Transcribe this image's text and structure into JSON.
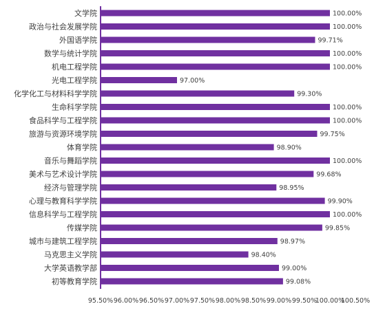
{
  "chart_data": {
    "type": "bar",
    "orientation": "horizontal",
    "title": "",
    "xlabel": "",
    "ylabel": "",
    "categories": [
      "文学院",
      "政治与社会发展学院",
      "外国语学院",
      "数学与统计学院",
      "机电工程学院",
      "光电工程学院",
      "化学化工与材料科学学院",
      "生命科学学院",
      "食品科学与工程学院",
      "旅游与资源环境学院",
      "体育学院",
      "音乐与舞蹈学院",
      "美术与艺术设计学院",
      "经济与管理学院",
      "心理与教育科学学院",
      "信息科学与工程学院",
      "传媒学院",
      "城市与建筑工程学院",
      "马克思主义学院",
      "大学英语教学部",
      "初等教育学院"
    ],
    "values": [
      100.0,
      100.0,
      99.71,
      100.0,
      100.0,
      97.0,
      99.3,
      100.0,
      100.0,
      99.75,
      98.9,
      100.0,
      99.68,
      98.95,
      99.9,
      100.0,
      99.85,
      98.97,
      98.4,
      99.0,
      99.08
    ],
    "value_labels": [
      "100.00%",
      "100.00%",
      "99.71%",
      "100.00%",
      "100.00%",
      "97.00%",
      "99.30%",
      "100.00%",
      "100.00%",
      "99.75%",
      "98.90%",
      "100.00%",
      "99.68%",
      "98.95%",
      "99.90%",
      "100.00%",
      "99.85%",
      "98.97%",
      "98.40%",
      "99.00%",
      "99.08%"
    ],
    "xlim": [
      95.5,
      100.5
    ],
    "x_ticks": [
      95.5,
      96.0,
      96.5,
      97.0,
      97.5,
      98.0,
      98.5,
      99.0,
      99.5,
      100.0,
      100.5
    ],
    "x_tick_labels": [
      "95.50%",
      "96.00%",
      "96.50%",
      "97.00%",
      "97.50%",
      "98.00%",
      "98.50%",
      "99.00%",
      "99.50%",
      "100.00%",
      "100.50%"
    ],
    "grid": false,
    "legend": "none",
    "colors": {
      "bar": "#7030A0",
      "axis": "#7030A0",
      "text": "#404040",
      "value_text": "#404040"
    }
  }
}
